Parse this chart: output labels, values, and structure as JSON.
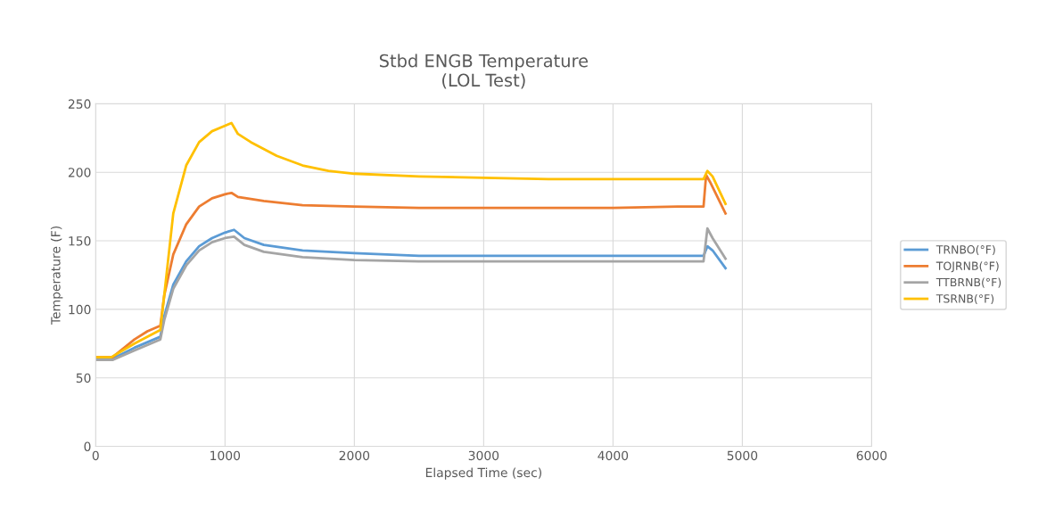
{
  "chart_data": {
    "type": "line",
    "title": "Stbd ENGB Temperature\n(LOL Test)",
    "xlabel": "Elapsed Time (sec)",
    "ylabel": "Temperature (F)",
    "xlim": [
      0,
      6000
    ],
    "xticks": [
      0,
      1000,
      2000,
      3000,
      4000,
      5000,
      6000
    ],
    "ylim": [
      0,
      250
    ],
    "yticks": [
      0,
      50,
      100,
      150,
      200,
      250
    ],
    "grid": true,
    "legend": "right",
    "marker": "none",
    "line_style": "solid",
    "series": [
      {
        "name": "TRNBO(°F)",
        "color": "#5b9bd5",
        "x": [
          0,
          130,
          300,
          500,
          530,
          600,
          700,
          800,
          900,
          1000,
          1070,
          1150,
          1300,
          1600,
          2000,
          2500,
          3000,
          3500,
          4000,
          4500,
          4700,
          4730,
          4770,
          4870
        ],
        "values": [
          64,
          64,
          72,
          80,
          95,
          118,
          135,
          146,
          152,
          156,
          158,
          152,
          147,
          143,
          141,
          139,
          139,
          139,
          139,
          139,
          139,
          146,
          143,
          130
        ]
      },
      {
        "name": "TOJRNB(°F)",
        "color": "#ed7d31",
        "x": [
          0,
          130,
          300,
          400,
          500,
          530,
          600,
          700,
          800,
          900,
          1000,
          1050,
          1100,
          1300,
          1600,
          2000,
          2500,
          3000,
          3500,
          4000,
          4500,
          4700,
          4720,
          4750,
          4870
        ],
        "values": [
          65,
          65,
          78,
          84,
          88,
          110,
          140,
          162,
          175,
          181,
          184,
          185,
          182,
          179,
          176,
          175,
          174,
          174,
          174,
          174,
          175,
          175,
          198,
          193,
          170
        ]
      },
      {
        "name": "TTBRNB(°F)",
        "color": "#a5a5a5",
        "x": [
          0,
          130,
          300,
          500,
          530,
          600,
          700,
          800,
          900,
          1000,
          1070,
          1150,
          1300,
          1600,
          2000,
          2500,
          3000,
          3500,
          4000,
          4500,
          4700,
          4730,
          4770,
          4870
        ],
        "values": [
          63,
          63,
          70,
          78,
          92,
          115,
          132,
          143,
          149,
          152,
          153,
          147,
          142,
          138,
          136,
          135,
          135,
          135,
          135,
          135,
          135,
          159,
          152,
          137
        ]
      },
      {
        "name": "TSRNB(°F)",
        "color": "#ffc000",
        "x": [
          0,
          120,
          300,
          500,
          530,
          600,
          700,
          800,
          900,
          1000,
          1050,
          1100,
          1200,
          1400,
          1600,
          1800,
          2000,
          2500,
          3000,
          3500,
          4000,
          4500,
          4700,
          4730,
          4770,
          4870
        ],
        "values": [
          65,
          65,
          75,
          85,
          110,
          170,
          205,
          222,
          230,
          234,
          236,
          228,
          222,
          212,
          205,
          201,
          199,
          197,
          196,
          195,
          195,
          195,
          195,
          201,
          197,
          177
        ]
      }
    ]
  }
}
